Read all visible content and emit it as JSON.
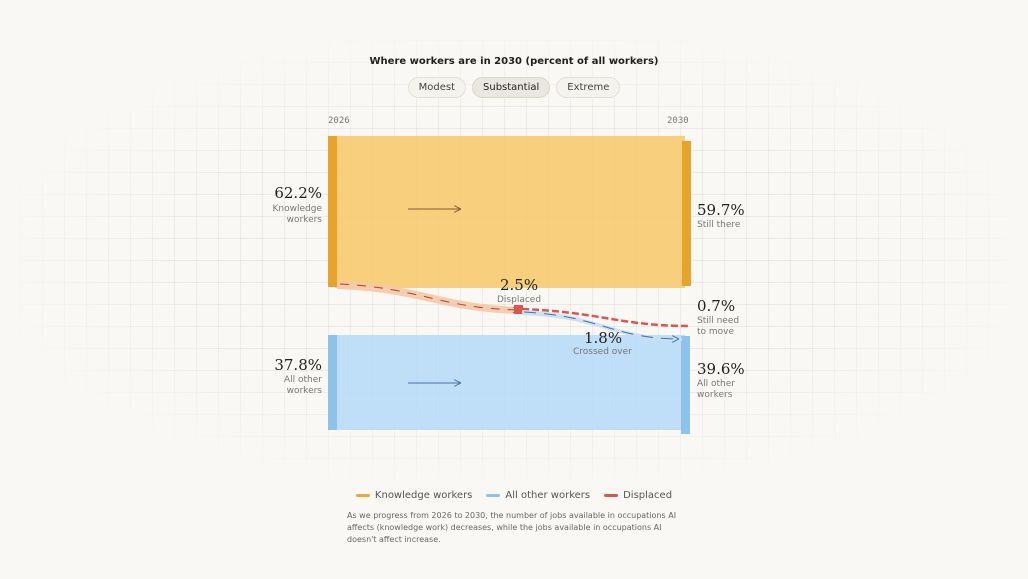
{
  "title": "Where workers are in 2030 (percent of all workers)",
  "scenarios": [
    "Modest",
    "Substantial",
    "Extreme"
  ],
  "active_scenario": "Substantial",
  "chart_data": {
    "type": "flow",
    "x": [
      "2026",
      "2030"
    ],
    "nodes_2026": [
      {
        "value": "62.2%",
        "label": "Knowledge workers",
        "color": "#f0b94a"
      },
      {
        "value": "37.8%",
        "label": "All other workers",
        "color": "#8ec2ea"
      }
    ],
    "nodes_2030": [
      {
        "value": "59.7%",
        "label": "Still there"
      },
      {
        "value": "0.7%",
        "label": "Still need to move"
      },
      {
        "value": "39.6%",
        "label": "All other workers"
      }
    ],
    "flows": [
      {
        "value": "2.5%",
        "label": "Displaced"
      },
      {
        "value": "1.8%",
        "label": "Crossed over"
      }
    ]
  },
  "labels": {
    "kw_2026_line1": "Knowledge",
    "kw_2026_line2": "workers",
    "other_2026_line1": "All other",
    "other_2026_line2": "workers",
    "move_line1": "Still need",
    "move_line2": "to move",
    "other_2030_line1": "All other",
    "other_2030_line2": "workers"
  },
  "legend": [
    {
      "label": "Knowledge workers",
      "color": "#e8a83a"
    },
    {
      "label": "All other workers",
      "color": "#8ec2ea"
    },
    {
      "label": "Displaced",
      "color": "#d9574f"
    }
  ],
  "note": "As we progress from 2026 to 2030, the number of jobs available in occupations AI affects (knowledge work) decreases, while the jobs available in occupations AI doesn't affect increase."
}
